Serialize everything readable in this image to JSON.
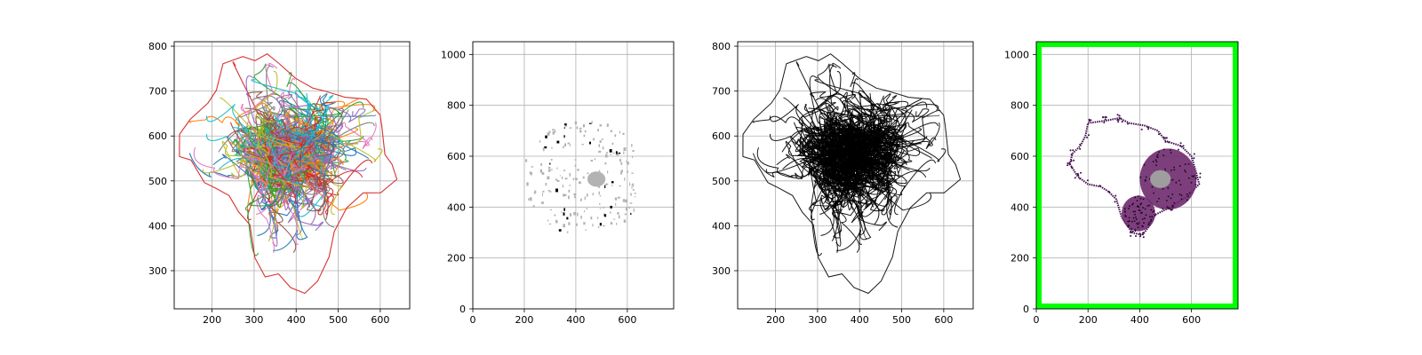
{
  "figure": {
    "background": "#ffffff"
  },
  "chart_data": [
    {
      "type": "line",
      "title": "",
      "style": "multicolor",
      "x_ticks": [
        200,
        300,
        400,
        500,
        600
      ],
      "y_ticks": [
        300,
        400,
        500,
        600,
        700,
        800
      ],
      "xlim": [
        110,
        670
      ],
      "ylim": [
        810,
        215
      ],
      "y_inverted": true,
      "grid": true,
      "series_colors": [
        "#1f77b4",
        "#ff7f0e",
        "#2ca02c",
        "#d62728",
        "#9467bd",
        "#8c564b",
        "#e377c2",
        "#7f7f7f",
        "#bcbd22",
        "#17becf"
      ],
      "outline": [
        [
          120,
          555
        ],
        [
          150,
          545
        ],
        [
          180,
          500
        ],
        [
          210,
          480
        ],
        [
          240,
          470
        ],
        [
          260,
          430
        ],
        [
          290,
          405
        ],
        [
          300,
          330
        ],
        [
          330,
          285
        ],
        [
          360,
          290
        ],
        [
          390,
          265
        ],
        [
          420,
          250
        ],
        [
          450,
          275
        ],
        [
          480,
          330
        ],
        [
          490,
          390
        ],
        [
          520,
          440
        ],
        [
          560,
          470
        ],
        [
          600,
          475
        ],
        [
          640,
          500
        ],
        [
          630,
          540
        ],
        [
          610,
          560
        ],
        [
          605,
          620
        ],
        [
          600,
          650
        ],
        [
          570,
          680
        ],
        [
          520,
          690
        ],
        [
          470,
          700
        ],
        [
          440,
          710
        ],
        [
          400,
          730
        ],
        [
          360,
          760
        ],
        [
          330,
          780
        ],
        [
          300,
          770
        ],
        [
          270,
          780
        ],
        [
          230,
          760
        ],
        [
          210,
          700
        ],
        [
          190,
          670
        ],
        [
          150,
          640
        ],
        [
          125,
          600
        ],
        [
          120,
          555
        ]
      ],
      "body_box": {
        "x": [
          180,
          600
        ],
        "y": [
          270,
          760
        ]
      },
      "body_core_box": {
        "x": [
          270,
          600
        ],
        "y": [
          330,
          690
        ]
      },
      "bottom_band": {
        "x": [
          200,
          480
        ],
        "y": [
          680,
          790
        ]
      },
      "left_band": {
        "x": [
          125,
          300
        ],
        "y": [
          500,
          660
        ]
      }
    },
    {
      "type": "scatter",
      "title": "",
      "style": "sparse_gray",
      "x_ticks": [
        0,
        200,
        400,
        600
      ],
      "y_ticks": [
        0,
        200,
        400,
        600,
        800,
        1000
      ],
      "xlim": [
        0,
        780
      ],
      "ylim": [
        1050,
        0
      ],
      "y_inverted": true,
      "grid": true,
      "colors": [
        "#b3b3b3",
        "#000000"
      ],
      "blob_center": [
        480,
        510
      ],
      "blob_radius": [
        35,
        30
      ],
      "scatter_box": {
        "x": [
          160,
          630
        ],
        "y": [
          280,
          760
        ]
      }
    },
    {
      "type": "line",
      "title": "",
      "style": "black",
      "x_ticks": [
        200,
        300,
        400,
        500,
        600
      ],
      "y_ticks": [
        300,
        400,
        500,
        600,
        700,
        800
      ],
      "xlim": [
        110,
        670
      ],
      "ylim": [
        810,
        215
      ],
      "y_inverted": true,
      "grid": true,
      "line_color": "#000000"
    },
    {
      "type": "scatter",
      "title": "",
      "style": "purple_outline",
      "x_ticks": [
        0,
        200,
        400,
        600
      ],
      "y_ticks": [
        0,
        200,
        400,
        600,
        800,
        1000
      ],
      "xlim": [
        0,
        780
      ],
      "ylim": [
        1050,
        0
      ],
      "y_inverted": true,
      "grid": true,
      "border_color": "#00ff00",
      "outline_color": "#3d0a4a",
      "fill_color": "#6e2a6e",
      "gray_color": "#9e9e9e",
      "outline": [
        [
          130,
          570
        ],
        [
          160,
          520
        ],
        [
          200,
          490
        ],
        [
          250,
          480
        ],
        [
          280,
          460
        ],
        [
          310,
          430
        ],
        [
          330,
          360
        ],
        [
          370,
          300
        ],
        [
          410,
          290
        ],
        [
          440,
          330
        ],
        [
          460,
          370
        ],
        [
          520,
          400
        ],
        [
          580,
          440
        ],
        [
          630,
          490
        ],
        [
          620,
          530
        ],
        [
          600,
          600
        ],
        [
          560,
          640
        ],
        [
          500,
          660
        ],
        [
          470,
          700
        ],
        [
          420,
          720
        ],
        [
          360,
          730
        ],
        [
          320,
          750
        ],
        [
          270,
          740
        ],
        [
          200,
          730
        ],
        [
          190,
          680
        ],
        [
          170,
          640
        ],
        [
          140,
          610
        ],
        [
          130,
          570
        ]
      ],
      "dark_regions": [
        {
          "center": [
            395,
            375
          ],
          "radius": [
            65,
            70
          ]
        },
        {
          "center": [
            510,
            510
          ],
          "radius": [
            110,
            120
          ]
        }
      ],
      "gray_blob": {
        "center": [
          480,
          510
        ],
        "radius": [
          40,
          35
        ]
      }
    }
  ]
}
